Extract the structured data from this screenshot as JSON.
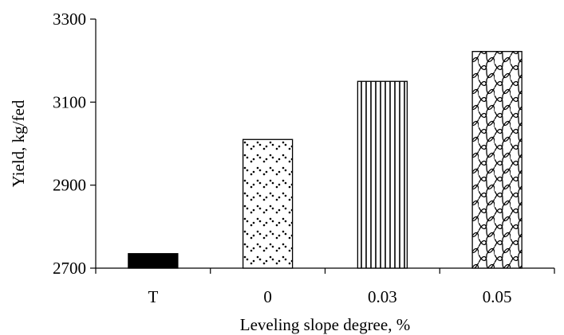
{
  "chart_data": {
    "type": "bar",
    "categories": [
      "T",
      "0",
      "0.03",
      "0.05"
    ],
    "values": [
      2735,
      3010,
      3150,
      3222
    ],
    "patterns": [
      "solid",
      "dots",
      "vertical-lines",
      "wave-hatch"
    ],
    "xlabel": "Leveling slope degree, %",
    "ylabel": "Yield, kg/fed",
    "ylim": [
      2700,
      3300
    ],
    "yticks": [
      2700,
      2900,
      3100,
      3300
    ],
    "grid": false,
    "bar_fill": "#ffffff",
    "bar_stroke": "#000000",
    "solid_fill": "#000000"
  }
}
